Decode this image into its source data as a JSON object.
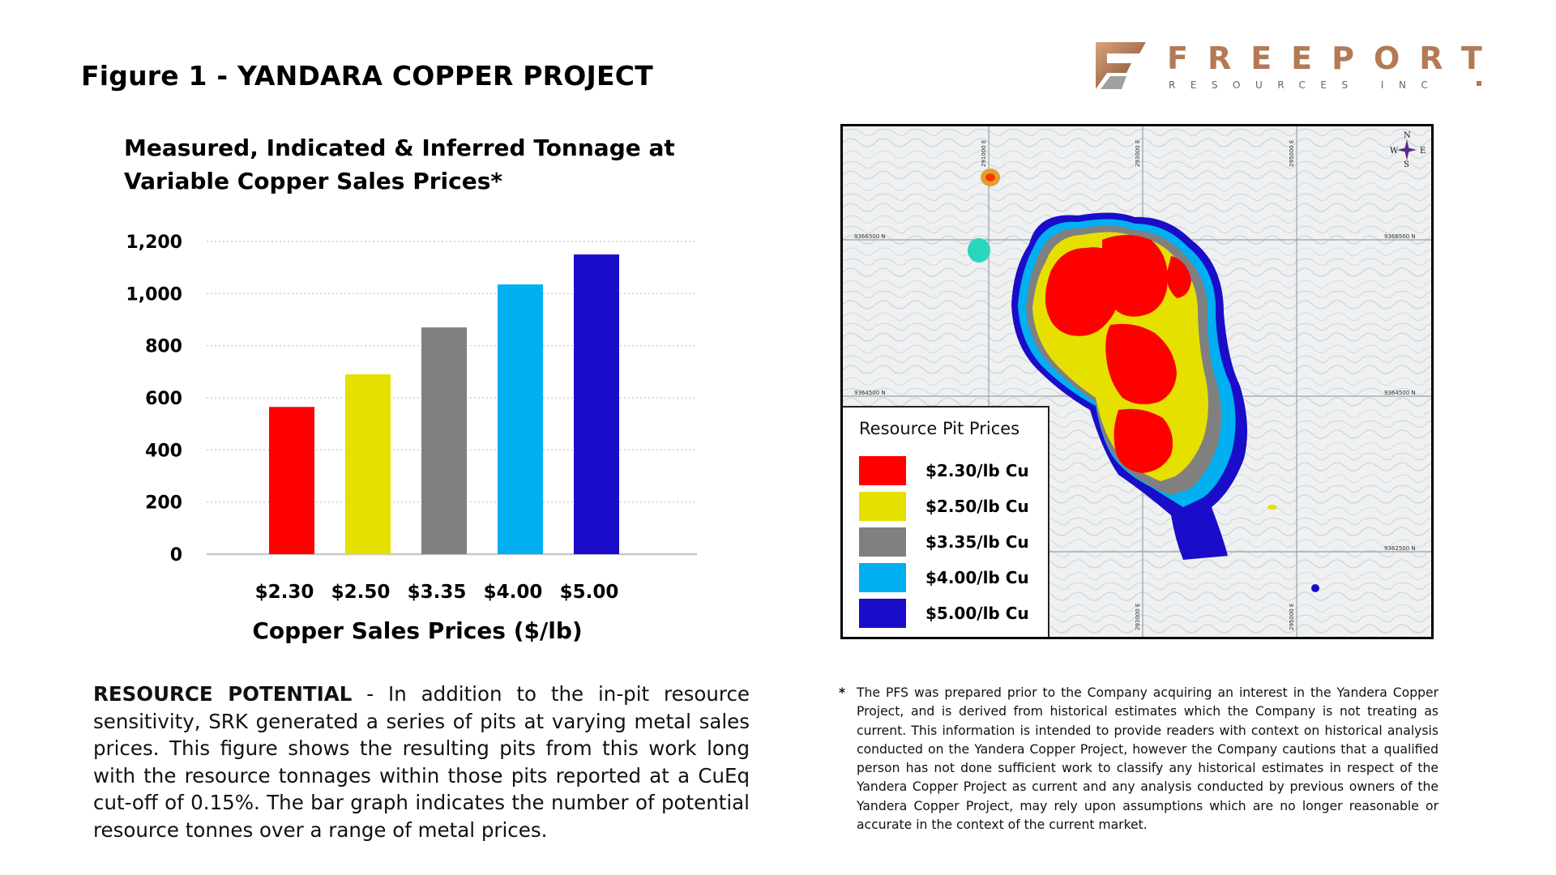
{
  "page": {
    "title": "Figure 1 - YANDARA COPPER PROJECT"
  },
  "logo": {
    "brand": "FREEPORT",
    "sub": "RESOURCES INC"
  },
  "chart_data": {
    "type": "bar",
    "title": "Measured, Indicated & Inferred Tonnage at Variable Copper Sales Prices*",
    "xlabel": "Copper Sales Prices ($/lb)",
    "ylabel": "",
    "categories": [
      "$2.30",
      "$2.50",
      "$3.35",
      "$4.00",
      "$5.00"
    ],
    "values": [
      565,
      690,
      870,
      1035,
      1150
    ],
    "colors": [
      "#ff0000",
      "#e6e000",
      "#808080",
      "#00b0f0",
      "#1a0dc9"
    ],
    "ylim": [
      0,
      1200
    ],
    "yticks": [
      0,
      200,
      400,
      600,
      800,
      1000,
      1200
    ],
    "ytick_labels": [
      "0",
      "200",
      "400",
      "600",
      "800",
      "1,000",
      "1,200"
    ],
    "grid": true
  },
  "resource": {
    "lead": "RESOURCE POTENTIAL",
    "body": " - In addition to the in-pit resource sensitivity, SRK generated a series of pits at varying metal sales prices. This figure shows the resulting pits from this work long with the resource tonnages within those pits reported at a CuEq cut-off of 0.15%. The bar graph indicates the number of potential resource tonnes over a range of metal prices."
  },
  "map": {
    "legend_title": "Resource Pit Prices",
    "legend": [
      {
        "label": "$2.30/lb Cu",
        "color": "#ff0000"
      },
      {
        "label": "$2.50/lb Cu",
        "color": "#e6e000"
      },
      {
        "label": "$3.35/lb Cu",
        "color": "#808080"
      },
      {
        "label": "$4.00/lb Cu",
        "color": "#00b0f0"
      },
      {
        "label": "$5.00/lb Cu",
        "color": "#1a0dc9"
      }
    ],
    "grid_labels": {
      "top1": "291000 E",
      "top2": "293000 E",
      "top3": "295000 E",
      "left1": "9366500 N",
      "left2": "9364500 N",
      "right1": "9366500 N",
      "right2": "9364500 N",
      "right3": "9362500 N",
      "bottom1": "293000 E",
      "bottom2": "295000 E"
    },
    "compass": {
      "n": "N",
      "s": "S",
      "e": "E",
      "w": "W"
    }
  },
  "footnote": {
    "star": "*",
    "text": "The PFS was prepared prior to the Company acquiring an interest in the Yandera Copper Project, and is derived from historical estimates which the Company is not treating as current.  This information is intended to provide readers with context on historical analysis conducted on the Yandera Copper Project, however the Company cautions that a qualified person has not done sufficient work to classify any historical estimates in respect of the Yandera Copper Project as current and any analysis conducted by previous owners of the Yandera Copper Project, may rely upon assumptions which are no longer reasonable or accurate in the context of the current market."
  }
}
